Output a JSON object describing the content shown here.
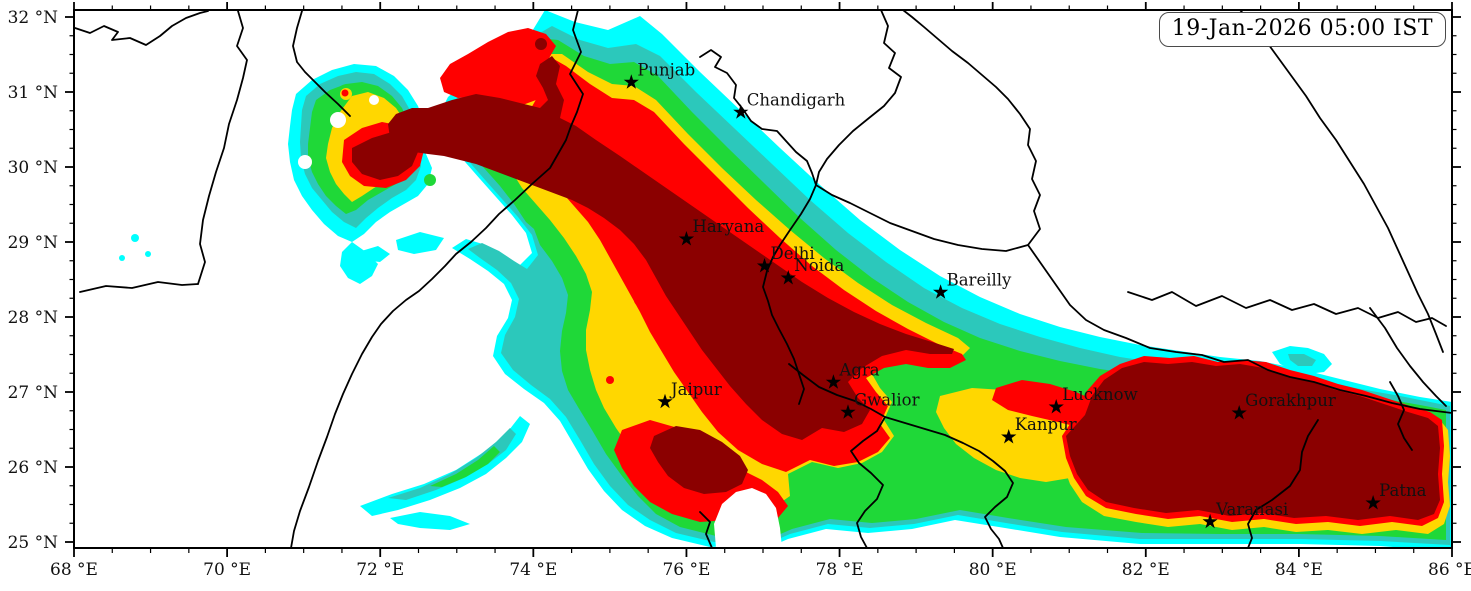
{
  "figure": {
    "timestamp": "19-Jan-2026 05:00 IST"
  },
  "axes": {
    "extent": {
      "lon_min": 68,
      "lon_max": 86,
      "lat_min": 25,
      "lat_max": 32
    },
    "x_ticks": [
      {
        "value": 68,
        "label": "68 °E"
      },
      {
        "value": 70,
        "label": "70 °E"
      },
      {
        "value": 72,
        "label": "72 °E"
      },
      {
        "value": 74,
        "label": "74 °E"
      },
      {
        "value": 76,
        "label": "76 °E"
      },
      {
        "value": 78,
        "label": "78 °E"
      },
      {
        "value": 80,
        "label": "80 °E"
      },
      {
        "value": 82,
        "label": "82 °E"
      },
      {
        "value": 84,
        "label": "84 °E"
      },
      {
        "value": 86,
        "label": "86 °E"
      }
    ],
    "y_ticks": [
      {
        "value": 25,
        "label": "25 °N"
      },
      {
        "value": 26,
        "label": "26 °N"
      },
      {
        "value": 27,
        "label": "27 °N"
      },
      {
        "value": 28,
        "label": "28 °N"
      },
      {
        "value": 29,
        "label": "29 °N"
      },
      {
        "value": 30,
        "label": "30 °N"
      },
      {
        "value": 31,
        "label": "31 °N"
      },
      {
        "value": 32,
        "label": "32 °N"
      }
    ],
    "x_minor_step": 0.5,
    "y_minor_step": 0.25
  },
  "cities": [
    {
      "name": "Punjab",
      "lon": 75.28,
      "lat": 31.13
    },
    {
      "name": "Chandigarh",
      "lon": 76.71,
      "lat": 30.73
    },
    {
      "name": "Haryana",
      "lon": 76.0,
      "lat": 29.04
    },
    {
      "name": "Delhi",
      "lon": 77.02,
      "lat": 28.68
    },
    {
      "name": "Noida",
      "lon": 77.33,
      "lat": 28.52
    },
    {
      "name": "Bareilly",
      "lon": 79.32,
      "lat": 28.33
    },
    {
      "name": "Jaipur",
      "lon": 75.72,
      "lat": 26.87
    },
    {
      "name": "Agra",
      "lon": 77.92,
      "lat": 27.13
    },
    {
      "name": "Gwalior",
      "lon": 78.11,
      "lat": 26.73
    },
    {
      "name": "Lucknow",
      "lon": 80.83,
      "lat": 26.8
    },
    {
      "name": "Kanpur",
      "lon": 80.21,
      "lat": 26.4
    },
    {
      "name": "Gorakhpur",
      "lon": 83.22,
      "lat": 26.72
    },
    {
      "name": "Varanasi",
      "lon": 82.84,
      "lat": 25.27
    },
    {
      "name": "Patna",
      "lon": 84.97,
      "lat": 25.52
    }
  ],
  "levels": [
    {
      "name": "level-1-lowest",
      "color": "#00FFFF"
    },
    {
      "name": "level-2",
      "color": "#2CC8BB"
    },
    {
      "name": "level-3",
      "color": "#1FD838"
    },
    {
      "name": "level-4",
      "color": "#FFD700"
    },
    {
      "name": "level-5",
      "color": "#FF0000"
    },
    {
      "name": "level-6-highest",
      "color": "#8B0000"
    }
  ],
  "colors": {
    "background": "#FFFFFF",
    "border_lines": "#000000",
    "frame": "#000000",
    "text": "#111111"
  }
}
